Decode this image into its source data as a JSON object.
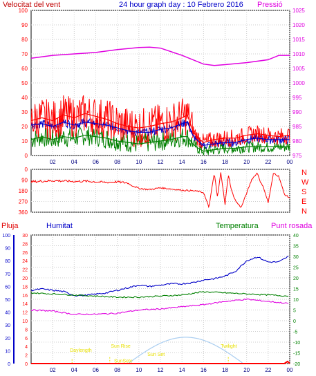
{
  "header": {
    "title": "24 hour graph day : 10 Febrero 2016",
    "left_label": "Velocitat del vent",
    "right_label": "Pressió"
  },
  "colors": {
    "red": "#ff0000",
    "blue": "#0000c8",
    "green": "#008000",
    "magenta": "#e000e0",
    "darkred": "#c00000",
    "sun": "#a9cdf0",
    "yellow": "#e8e000",
    "bg": "#ffffff"
  },
  "time_axis": [
    "02",
    "04",
    "06",
    "08",
    "10",
    "12",
    "14",
    "16",
    "18",
    "20",
    "22",
    "00"
  ],
  "chart_data": [
    {
      "type": "line",
      "name": "wind_pressure",
      "y_left": {
        "label": "Velocitat del vent",
        "ticks": [
          "0",
          "10",
          "20",
          "30",
          "40",
          "50",
          "60",
          "70",
          "80",
          "90",
          "100"
        ],
        "ylim": [
          0,
          100
        ]
      },
      "y_right": {
        "label": "Pressió",
        "ticks": [
          "975",
          "980",
          "985",
          "990",
          "995",
          "1000",
          "1005",
          "1010",
          "1015",
          "1020",
          "1025"
        ],
        "ylim": [
          975,
          1025
        ]
      },
      "series": [
        {
          "color": "red",
          "axis": "left",
          "x": [
            0,
            1,
            2,
            3,
            4,
            5,
            6,
            7,
            8,
            9,
            10,
            11,
            12,
            13,
            14,
            14.5,
            15,
            15.5,
            16,
            17,
            18,
            19,
            20,
            21,
            22,
            23,
            24
          ],
          "values": [
            24,
            26,
            24,
            28,
            26,
            29,
            27,
            25,
            22,
            20,
            19,
            20,
            22,
            23,
            26,
            28,
            17,
            12,
            9,
            11,
            12,
            12,
            14,
            15,
            14,
            13,
            14
          ]
        },
        {
          "color": "blue",
          "axis": "left",
          "x": [
            0,
            1,
            2,
            3,
            4,
            5,
            6,
            7,
            8,
            9,
            10,
            11,
            12,
            13,
            14,
            14.5,
            15,
            15.5,
            16,
            17,
            18,
            19,
            20,
            21,
            22,
            23,
            24
          ],
          "values": [
            21,
            22,
            20,
            23,
            21,
            23,
            22,
            21,
            19,
            17,
            16,
            16,
            18,
            19,
            22,
            23,
            14,
            10,
            7,
            8,
            9,
            9,
            11,
            12,
            11,
            11,
            11
          ]
        },
        {
          "color": "green",
          "axis": "left",
          "x": [
            0,
            1,
            2,
            3,
            4,
            5,
            6,
            7,
            8,
            9,
            10,
            11,
            12,
            13,
            14,
            14.5,
            15,
            15.5,
            16,
            17,
            18,
            19,
            20,
            21,
            22,
            23,
            24
          ],
          "values": [
            11,
            13,
            11,
            13,
            12,
            14,
            13,
            12,
            10,
            9,
            8,
            9,
            10,
            11,
            13,
            13,
            8,
            5,
            3,
            4,
            5,
            5,
            6,
            6,
            6,
            6,
            6
          ]
        },
        {
          "color": "magenta",
          "axis": "right",
          "x": [
            0,
            2,
            4,
            6,
            8,
            10,
            11,
            12,
            14,
            16,
            17,
            18,
            20,
            22,
            23,
            24
          ],
          "values": [
            1008.5,
            1009.5,
            1010,
            1010.5,
            1011.5,
            1012.2,
            1012.3,
            1012,
            1009.5,
            1006.5,
            1006,
            1006.3,
            1007,
            1008,
            1009.5,
            1009.5
          ]
        }
      ]
    },
    {
      "type": "line",
      "name": "wind_direction",
      "y_left": {
        "ticks": [
          "0",
          "90",
          "180",
          "270",
          "360"
        ],
        "ylim": [
          0,
          360
        ]
      },
      "y_right": {
        "ticks": [
          "N",
          "W",
          "S",
          "E",
          "N"
        ]
      },
      "series": [
        {
          "color": "red",
          "x": [
            0,
            1,
            2,
            3,
            4,
            5,
            6,
            7,
            8,
            9,
            9.2,
            10,
            11,
            12,
            13,
            14,
            15,
            15.5,
            16,
            16.5,
            17,
            17.3,
            17.6,
            18,
            18.3,
            18.6,
            19,
            19.5,
            20,
            20.5,
            21,
            21.3,
            21.6,
            22,
            22.5,
            23,
            23.5,
            24
          ],
          "values": [
            255,
            260,
            265,
            262,
            258,
            260,
            255,
            250,
            255,
            245,
            230,
            200,
            190,
            205,
            195,
            185,
            180,
            175,
            165,
            40,
            330,
            120,
            340,
            60,
            320,
            180,
            90,
            40,
            160,
            280,
            330,
            250,
            200,
            80,
            330,
            300,
            150,
            120
          ]
        }
      ]
    },
    {
      "type": "line",
      "name": "humidity_temp_rain",
      "labels": [
        "Pluja",
        "Humitat",
        "Temperatura",
        "Punt rosada"
      ],
      "y_rain": {
        "ticks": [
          "0",
          "2",
          "4",
          "6",
          "8",
          "10",
          "12",
          "14",
          "16",
          "18",
          "20",
          "22",
          "24",
          "26",
          "28",
          "30"
        ],
        "ylim": [
          0,
          30
        ]
      },
      "y_hum": {
        "ticks": [
          "0",
          "10",
          "20",
          "30",
          "40",
          "50",
          "60",
          "70",
          "80",
          "90",
          "100"
        ],
        "ylim": [
          0,
          100
        ]
      },
      "y_temp": {
        "ticks": [
          "-20",
          "-15",
          "-10",
          "-5",
          "0",
          "5",
          "10",
          "15",
          "20",
          "25",
          "30",
          "35",
          "40"
        ],
        "ylim": [
          -20,
          40
        ]
      },
      "series": [
        {
          "color": "blue",
          "axis": "hum",
          "x": [
            0,
            1,
            2,
            3,
            4,
            5,
            6,
            7,
            8,
            9,
            10,
            11,
            12,
            13,
            14,
            15,
            16,
            17,
            18,
            19,
            20,
            21,
            22,
            23,
            24
          ],
          "values": [
            57,
            58,
            57,
            56,
            53,
            53,
            54,
            55,
            57,
            59,
            61,
            60,
            61,
            62,
            62,
            63,
            65,
            66,
            68,
            72,
            80,
            83,
            79,
            79,
            84
          ]
        },
        {
          "color": "green",
          "axis": "temp",
          "x": [
            0,
            2,
            4,
            6,
            8,
            10,
            12,
            14,
            16,
            18,
            20,
            22,
            24
          ],
          "values": [
            13,
            12.5,
            12,
            11.5,
            11,
            11,
            11.5,
            12,
            13.5,
            13,
            12.5,
            12,
            11.5
          ]
        },
        {
          "color": "magenta",
          "axis": "temp",
          "x": [
            0,
            2,
            4,
            6,
            8,
            10,
            12,
            14,
            16,
            18,
            20,
            22,
            24
          ],
          "values": [
            5,
            4.5,
            3,
            3,
            3.5,
            5,
            5.5,
            6.5,
            7.5,
            9,
            10,
            9,
            8
          ]
        },
        {
          "color": "red",
          "axis": "rain",
          "x": [
            0,
            23.5,
            23.8,
            24
          ],
          "values": [
            0,
            0,
            0.5,
            0
          ]
        }
      ],
      "sun": {
        "rise": "Sun Rise",
        "set": "Sun Set",
        "max_x": 14.3,
        "start_x": 9,
        "end_x": 19.7
      },
      "annotations": [
        "Daylength",
        "Sun Rise",
        "SunSetc",
        "Sun Set",
        "Twilight"
      ]
    }
  ]
}
